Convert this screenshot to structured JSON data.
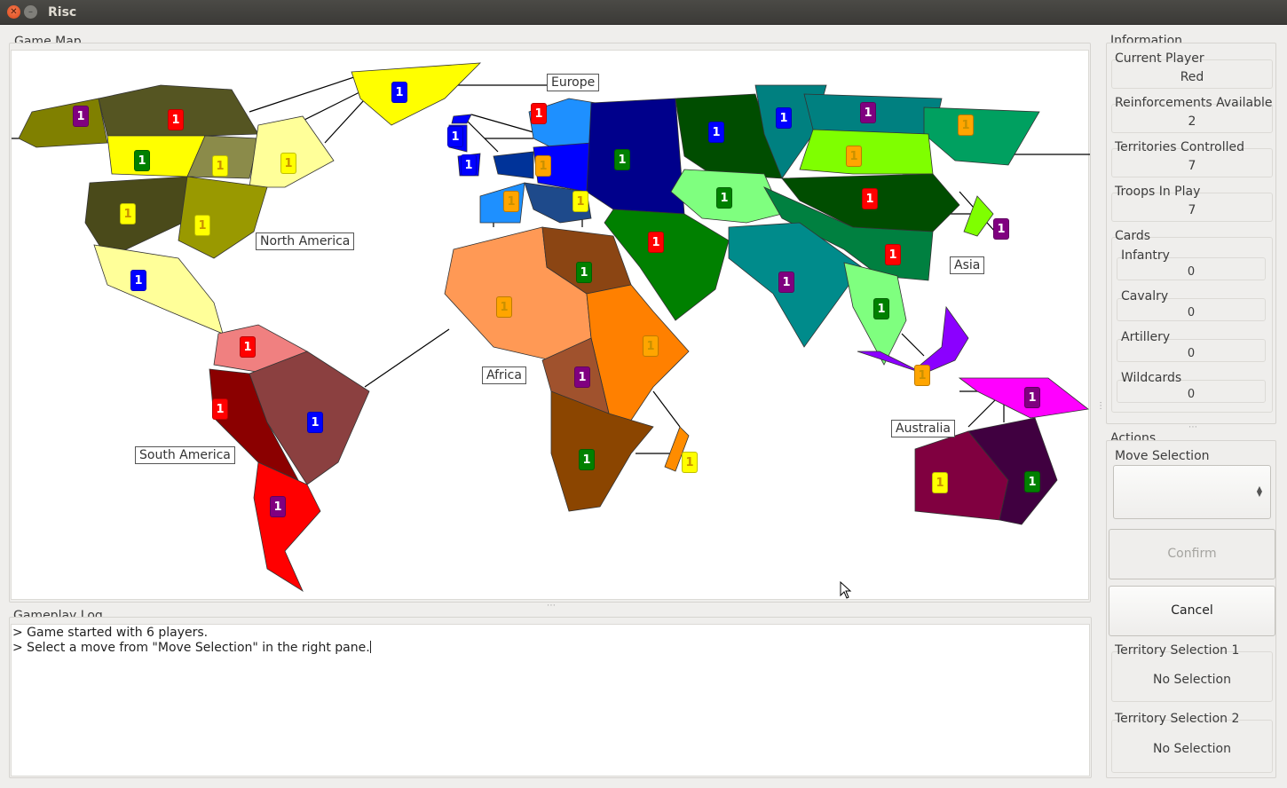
{
  "window": {
    "title": "Risc",
    "close_icon": "✕",
    "minimize_icon": "–"
  },
  "map_group": {
    "label": "Game Map"
  },
  "continents": [
    "North America",
    "Europe",
    "Asia",
    "Africa",
    "South America",
    "Australia"
  ],
  "log_group": {
    "label": "Gameplay Log"
  },
  "log_lines": [
    "> Game started with 6 players.",
    "> Select a move from \"Move Selection\" in the right pane."
  ],
  "info": {
    "label": "Information",
    "current_player_label": "Current Player",
    "current_player": "Red",
    "reinforcements_label": "Reinforcements Available",
    "reinforcements": "2",
    "territories_label": "Territories Controlled",
    "territories": "7",
    "troops_label": "Troops In Play",
    "troops": "7"
  },
  "cards": {
    "label": "Cards",
    "infantry_label": "Infantry",
    "infantry": "0",
    "cavalry_label": "Cavalry",
    "cavalry": "0",
    "artillery_label": "Artillery",
    "artillery": "0",
    "wildcards_label": "Wildcards",
    "wildcards": "0"
  },
  "actions": {
    "label": "Actions",
    "move_selection_label": "Move Selection",
    "move_selection_value": "",
    "confirm_label": "Confirm",
    "cancel_label": "Cancel",
    "territory1_label": "Territory Selection 1",
    "territory1_value": "No Selection",
    "territory2_label": "Territory Selection 2",
    "territory2_value": "No Selection"
  },
  "player_colors": {
    "red": "#ff0000",
    "blue": "#0000ff",
    "yellow": "#ffff00",
    "green": "#008000",
    "orange": "#ffa500",
    "purple": "#800080"
  },
  "troop_count": "1"
}
